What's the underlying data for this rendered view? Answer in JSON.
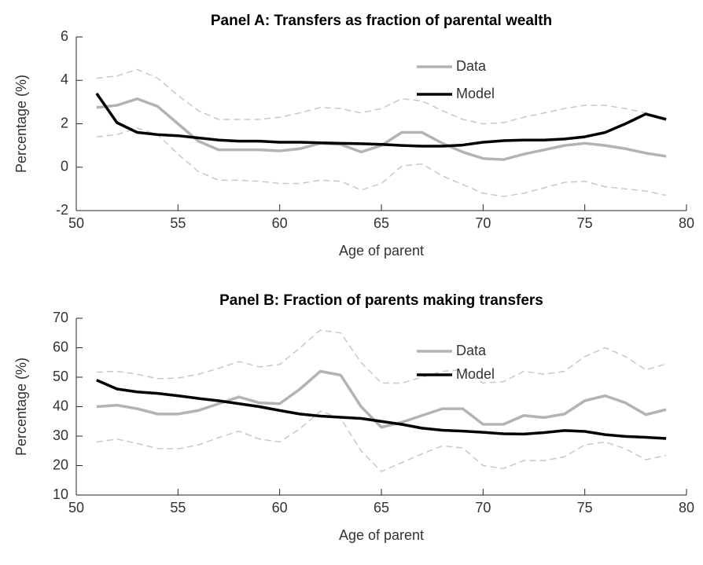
{
  "chart_data": [
    {
      "type": "line",
      "title": "Panel A: Transfers as fraction of parental wealth",
      "x_label": "Age of parent",
      "y_label": "Percentage (%)",
      "x": [
        51,
        52,
        53,
        54,
        55,
        56,
        57,
        58,
        59,
        60,
        61,
        62,
        63,
        64,
        65,
        66,
        67,
        68,
        69,
        70,
        71,
        72,
        73,
        74,
        75,
        76,
        77,
        78,
        79
      ],
      "series": [
        {
          "name": "Data",
          "color": "#b3b3b3",
          "values": [
            2.75,
            2.85,
            3.15,
            2.8,
            2.0,
            1.2,
            0.8,
            0.8,
            0.8,
            0.75,
            0.85,
            1.1,
            1.05,
            0.7,
            1.0,
            1.6,
            1.6,
            1.1,
            0.7,
            0.4,
            0.35,
            0.6,
            0.8,
            1.0,
            1.1,
            1.0,
            0.85,
            0.65,
            0.5
          ]
        },
        {
          "name": "Model",
          "color": "#000000",
          "values": [
            3.4,
            2.05,
            1.6,
            1.5,
            1.45,
            1.35,
            1.25,
            1.2,
            1.2,
            1.15,
            1.15,
            1.12,
            1.1,
            1.08,
            1.05,
            1.0,
            0.97,
            0.97,
            1.02,
            1.15,
            1.22,
            1.25,
            1.25,
            1.3,
            1.4,
            1.6,
            2.0,
            2.45,
            2.2
          ]
        }
      ],
      "bands": {
        "color": "#c8c8c8",
        "upper": [
          4.1,
          4.2,
          4.5,
          4.1,
          3.3,
          2.6,
          2.2,
          2.2,
          2.2,
          2.3,
          2.5,
          2.75,
          2.7,
          2.5,
          2.7,
          3.15,
          3.05,
          2.6,
          2.2,
          2.0,
          2.05,
          2.3,
          2.5,
          2.7,
          2.85,
          2.85,
          2.7,
          2.5,
          2.25
        ],
        "lower": [
          1.4,
          1.5,
          1.8,
          1.5,
          0.6,
          -0.2,
          -0.6,
          -0.6,
          -0.65,
          -0.75,
          -0.75,
          -0.6,
          -0.65,
          -1.05,
          -0.75,
          0.05,
          0.15,
          -0.4,
          -0.8,
          -1.2,
          -1.35,
          -1.2,
          -0.95,
          -0.7,
          -0.65,
          -0.9,
          -1.0,
          -1.1,
          -1.3
        ]
      },
      "xlim": [
        50,
        80
      ],
      "xticks": [
        50,
        55,
        60,
        65,
        70,
        75,
        80
      ],
      "ylim": [
        -2,
        6
      ],
      "yticks": [
        -2,
        0,
        2,
        4,
        6
      ],
      "grid": false,
      "legend": "top"
    },
    {
      "type": "line",
      "title": "Panel B: Fraction of parents making transfers",
      "x_label": "Age of parent",
      "y_label": "Percentage (%)",
      "x": [
        51,
        52,
        53,
        54,
        55,
        56,
        57,
        58,
        59,
        60,
        61,
        62,
        63,
        64,
        65,
        66,
        67,
        68,
        69,
        70,
        71,
        72,
        73,
        74,
        75,
        76,
        77,
        78,
        79
      ],
      "series": [
        {
          "name": "Data",
          "color": "#b3b3b3",
          "values": [
            40,
            40.5,
            39.3,
            37.5,
            37.5,
            38.7,
            41,
            43.3,
            41.3,
            41,
            46,
            52,
            50.7,
            40,
            33,
            34.7,
            37,
            39.3,
            39.3,
            34,
            34,
            37,
            36.3,
            37.5,
            42,
            43.7,
            41.3,
            37.3,
            39
          ]
        },
        {
          "name": "Model",
          "color": "#000000",
          "values": [
            49,
            46,
            45,
            44.5,
            43.7,
            42.8,
            42,
            41,
            40,
            38.7,
            37.5,
            36.8,
            36.4,
            36,
            35,
            34,
            32.7,
            32,
            31.7,
            31.3,
            30.8,
            30.7,
            31.2,
            31.9,
            31.6,
            30.5,
            29.9,
            29.6,
            29.2
          ]
        }
      ],
      "bands": {
        "color": "#c8c8c8",
        "upper": [
          51.7,
          52,
          51,
          49.5,
          49.7,
          51,
          53,
          55.3,
          53.5,
          54.3,
          60,
          66,
          65,
          55,
          48,
          48,
          50,
          52,
          52.5,
          48,
          48.5,
          52,
          51,
          52,
          57,
          60,
          57,
          52.5,
          54.5
        ],
        "lower": [
          28,
          29,
          27.5,
          25.8,
          25.7,
          27,
          29.5,
          31.7,
          29,
          28,
          32.5,
          38.5,
          36,
          25,
          18,
          21,
          24,
          26.7,
          26,
          20,
          19,
          21.7,
          21.7,
          23,
          27,
          28,
          25.7,
          22,
          23.5
        ]
      },
      "xlim": [
        50,
        80
      ],
      "xticks": [
        50,
        55,
        60,
        65,
        70,
        75,
        80
      ],
      "ylim": [
        10,
        70
      ],
      "yticks": [
        10,
        20,
        30,
        40,
        50,
        60,
        70
      ],
      "grid": false,
      "legend": "top"
    }
  ]
}
